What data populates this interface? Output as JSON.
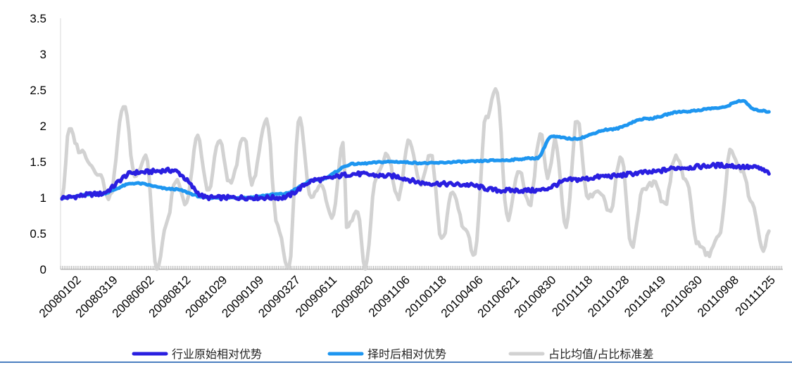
{
  "chart_data": {
    "type": "line",
    "title": "",
    "xlabel": "",
    "ylabel": "",
    "ylim": [
      0,
      3.5
    ],
    "y_ticks": [
      "0",
      "0.5",
      "1",
      "1.5",
      "2",
      "2.5",
      "3",
      "3.5"
    ],
    "x_tick_labels": [
      "20080102",
      "20080319",
      "20080602",
      "20080812",
      "20081029",
      "20090109",
      "20090327",
      "20090611",
      "20090820",
      "20091106",
      "20100118",
      "20100406",
      "20100621",
      "20100830",
      "20101118",
      "20110128",
      "20110419",
      "20110630",
      "20110908",
      "20111125"
    ],
    "grid": false,
    "legend_position": "bottom",
    "series": [
      {
        "name": "行业原始相对优势",
        "color": "#2a1fe0",
        "x_anchor": [
          0,
          1,
          2,
          3,
          4,
          5,
          6,
          7,
          8,
          9,
          10,
          11,
          12,
          13,
          14,
          15,
          16,
          17,
          18,
          19,
          19.35
        ],
        "values": [
          1.0,
          1.05,
          1.35,
          1.38,
          1.0,
          1.0,
          1.0,
          1.25,
          1.33,
          1.3,
          1.2,
          1.18,
          1.1,
          1.1,
          1.25,
          1.3,
          1.35,
          1.42,
          1.45,
          1.42,
          1.35
        ]
      },
      {
        "name": "择时后相对优势",
        "color": "#1e96f0",
        "x_anchor": [
          0,
          1,
          2,
          3,
          4,
          5,
          6,
          7,
          8,
          9,
          10,
          11,
          12,
          13,
          13.4,
          14,
          15,
          16,
          17,
          18,
          18.6,
          19,
          19.35
        ],
        "values": [
          1.0,
          1.05,
          1.2,
          1.12,
          1.0,
          1.0,
          1.05,
          1.25,
          1.47,
          1.5,
          1.48,
          1.5,
          1.52,
          1.55,
          1.85,
          1.82,
          1.95,
          2.1,
          2.2,
          2.25,
          2.35,
          2.22,
          2.2
        ]
      },
      {
        "name": "占比均值/占比标准差",
        "color": "#d2d2d2",
        "x_anchor": [
          0,
          0.2,
          0.5,
          1,
          1.3,
          1.7,
          2,
          2.3,
          2.6,
          2.9,
          3.1,
          3.4,
          3.7,
          4,
          4.3,
          4.6,
          5,
          5.2,
          5.6,
          5.9,
          6.2,
          6.5,
          6.8,
          7.1,
          7.4,
          7.7,
          7.8,
          8.1,
          8.3,
          8.6,
          8.9,
          9.2,
          9.5,
          9.8,
          10.1,
          10.4,
          10.7,
          11.0,
          11.3,
          11.6,
          11.9,
          12.2,
          12.5,
          12.8,
          13.1,
          13.3,
          13.5,
          13.8,
          14.1,
          14.4,
          14.7,
          15.0,
          15.3,
          15.6,
          15.9,
          16.2,
          16.5,
          16.8,
          17.1,
          17.4,
          17.7,
          18.0,
          18.3,
          18.6,
          18.9,
          19.2,
          19.35
        ],
        "values": [
          1.0,
          1.95,
          1.65,
          1.35,
          1.0,
          2.3,
          1.3,
          1.6,
          0.0,
          0.7,
          1.25,
          0.9,
          1.85,
          1.1,
          1.8,
          1.2,
          1.85,
          1.2,
          2.1,
          0.6,
          0.0,
          2.1,
          1.0,
          1.15,
          0.7,
          1.75,
          0.6,
          0.8,
          0.0,
          1.3,
          1.6,
          1.0,
          1.8,
          1.2,
          1.6,
          0.4,
          1.1,
          0.6,
          0.2,
          2.1,
          2.5,
          0.7,
          1.4,
          0.9,
          1.9,
          1.3,
          1.8,
          0.6,
          2.1,
          1.0,
          1.1,
          0.8,
          1.6,
          0.3,
          1.1,
          1.2,
          0.9,
          1.6,
          1.2,
          0.35,
          0.2,
          0.5,
          1.65,
          1.4,
          0.9,
          0.25,
          0.5
        ]
      }
    ]
  }
}
